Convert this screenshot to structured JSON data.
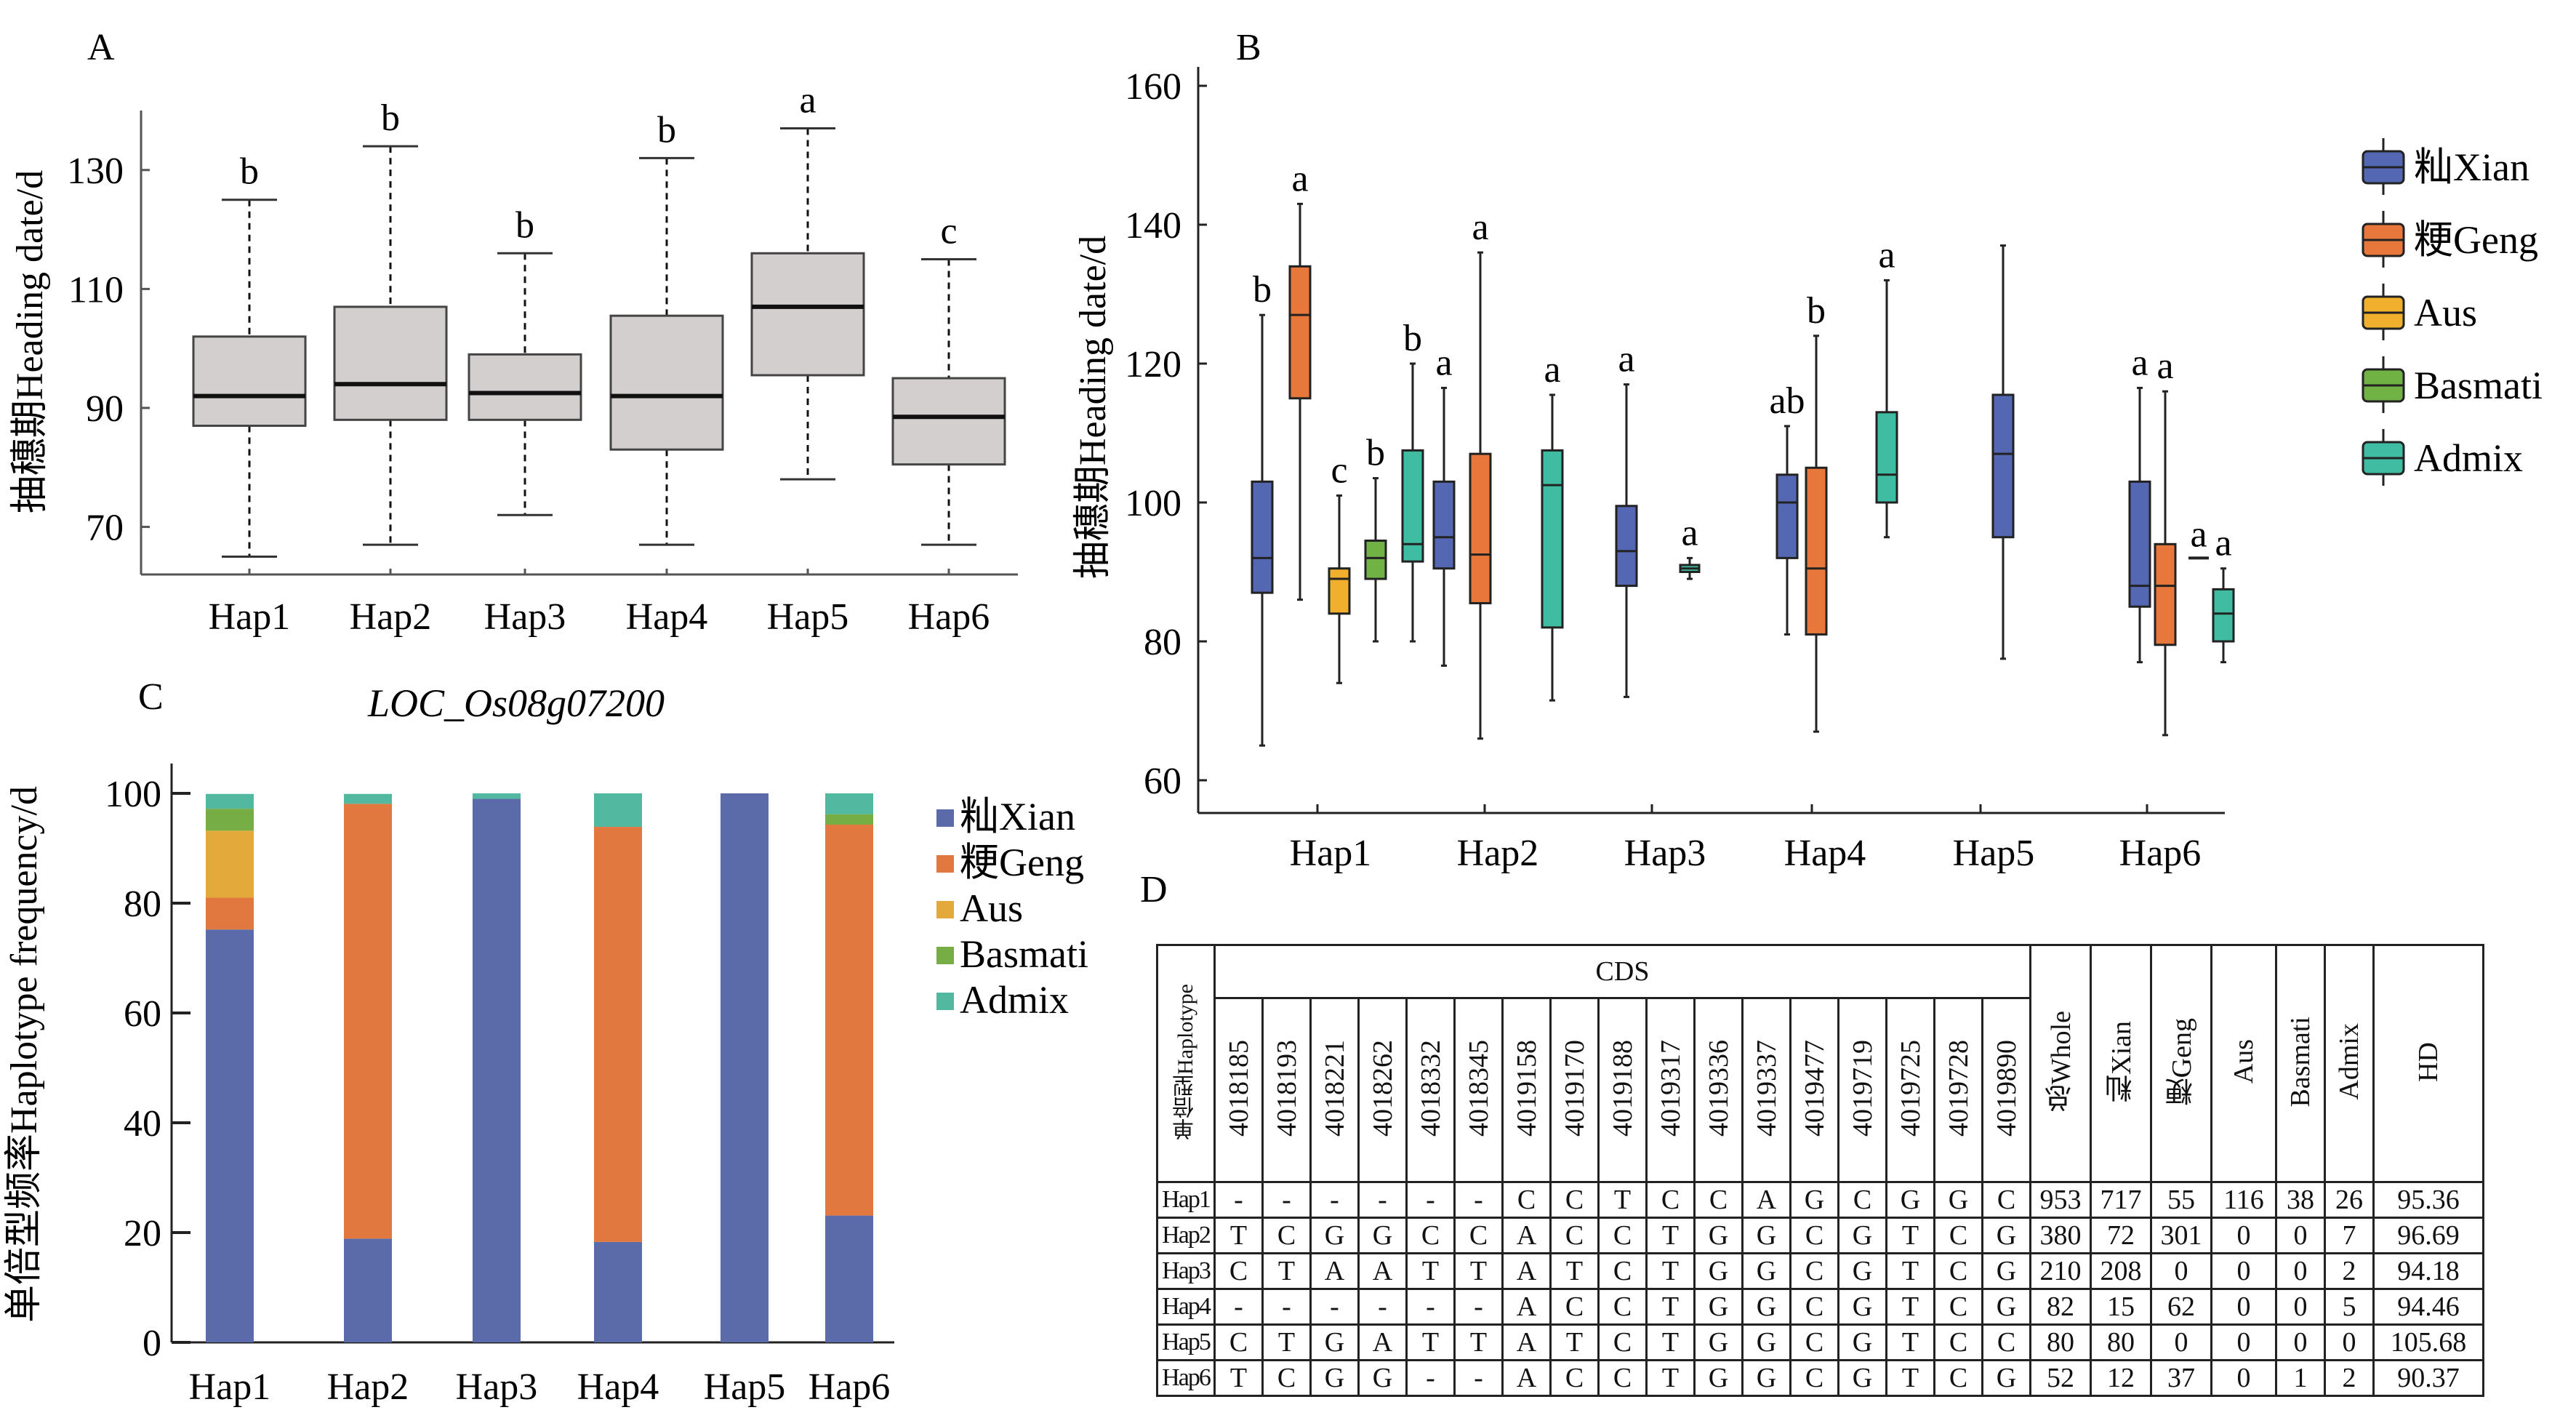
{
  "panels": {
    "a_label": "A",
    "b_label": "B",
    "c_label": "C",
    "d_label": "D"
  },
  "chart_data": [
    {
      "id": "A",
      "type": "box",
      "title": "",
      "ylabel": "抽穗期Heading date/d",
      "xlabel": "",
      "ylim": [
        62,
        140
      ],
      "yticks": [
        70,
        90,
        110,
        130
      ],
      "categories": [
        "Hap1",
        "Hap2",
        "Hap3",
        "Hap4",
        "Hap5",
        "Hap6"
      ],
      "whisker_style": "dashed",
      "box_color": "#d3cfcf",
      "boxes": [
        {
          "min": 65,
          "q1": 87,
          "median": 92,
          "q3": 102,
          "max": 125,
          "sig": "b"
        },
        {
          "min": 67,
          "q1": 88,
          "median": 94,
          "q3": 107,
          "max": 134,
          "sig": "b"
        },
        {
          "min": 72,
          "q1": 88,
          "median": 92.5,
          "q3": 99,
          "max": 116,
          "sig": "b"
        },
        {
          "min": 67,
          "q1": 83,
          "median": 92,
          "q3": 105.5,
          "max": 132,
          "sig": "b"
        },
        {
          "min": 78,
          "q1": 95.5,
          "median": 107,
          "q3": 116,
          "max": 137,
          "sig": "a"
        },
        {
          "min": 67,
          "q1": 80.5,
          "median": 88.5,
          "q3": 95,
          "max": 115,
          "sig": "c"
        }
      ]
    },
    {
      "id": "B",
      "type": "box",
      "title": "",
      "ylabel": "抽穗期Heading date/d",
      "xlabel": "",
      "ylim": [
        55,
        163
      ],
      "yticks": [
        60,
        80,
        100,
        120,
        140,
        160
      ],
      "categories": [
        "Hap1",
        "Hap2",
        "Hap3",
        "Hap4",
        "Hap5",
        "Hap6"
      ],
      "legend_position": "right",
      "series_names": [
        "籼Xian",
        "粳Geng",
        "Aus",
        "Basmati",
        "Admix"
      ],
      "series_colors": [
        "#5467b3",
        "#e8773b",
        "#f0b02e",
        "#71b244",
        "#3fbca2"
      ],
      "groups": [
        {
          "category": "Hap1",
          "boxes": [
            {
              "series": 0,
              "min": 65,
              "q1": 87,
              "median": 92,
              "q3": 103,
              "max": 127,
              "sig": "b"
            },
            {
              "series": 1,
              "min": 86,
              "q1": 115,
              "median": 127,
              "q3": 134,
              "max": 143,
              "sig": "a"
            },
            {
              "series": 2,
              "min": 74,
              "q1": 84,
              "median": 89,
              "q3": 90.5,
              "max": 101,
              "sig": "c"
            },
            {
              "series": 3,
              "min": 80,
              "q1": 89,
              "median": 92,
              "q3": 94.5,
              "max": 103.5,
              "sig": "b"
            },
            {
              "series": 4,
              "min": 80,
              "q1": 91.5,
              "median": 94,
              "q3": 107.5,
              "max": 120,
              "sig": "b"
            }
          ]
        },
        {
          "category": "Hap2",
          "boxes": [
            {
              "series": 0,
              "min": 76.5,
              "q1": 90.5,
              "median": 95,
              "q3": 103,
              "max": 116.5,
              "sig": "a"
            },
            {
              "series": 1,
              "min": 66,
              "q1": 85.5,
              "median": 92.5,
              "q3": 107,
              "max": 136,
              "sig": "a"
            },
            {
              "series": 4,
              "min": 71.5,
              "q1": 82,
              "median": 102.5,
              "q3": 107.5,
              "max": 115.5,
              "sig": "a"
            }
          ]
        },
        {
          "category": "Hap3",
          "boxes": [
            {
              "series": 0,
              "min": 72,
              "q1": 88,
              "median": 93,
              "q3": 99.5,
              "max": 117,
              "sig": "a"
            },
            {
              "series": 4,
              "min": 89,
              "q1": 90,
              "median": 90.5,
              "q3": 91,
              "max": 92,
              "sig": "a"
            }
          ]
        },
        {
          "category": "Hap4",
          "boxes": [
            {
              "series": 0,
              "min": 81,
              "q1": 92,
              "median": 100,
              "q3": 104,
              "max": 111,
              "sig": "ab"
            },
            {
              "series": 1,
              "min": 67,
              "q1": 81,
              "median": 90.5,
              "q3": 105,
              "max": 124,
              "sig": "b"
            },
            {
              "series": 4,
              "min": 95,
              "q1": 100,
              "median": 104,
              "q3": 113,
              "max": 132,
              "sig": "a"
            }
          ]
        },
        {
          "category": "Hap5",
          "boxes": [
            {
              "series": 0,
              "min": 77.5,
              "q1": 95,
              "median": 107,
              "q3": 115.5,
              "max": 137,
              "sig": ""
            }
          ]
        },
        {
          "category": "Hap6",
          "boxes": [
            {
              "series": 0,
              "min": 77,
              "q1": 85,
              "median": 88,
              "q3": 103,
              "max": 116.5,
              "sig": "a"
            },
            {
              "series": 1,
              "min": 66.5,
              "q1": 79.5,
              "median": 88,
              "q3": 94,
              "max": 116,
              "sig": "a"
            },
            {
              "series": 3,
              "min": 92,
              "q1": 92,
              "median": 92,
              "q3": 92,
              "max": 92,
              "sig": "a"
            },
            {
              "series": 4,
              "min": 77,
              "q1": 80,
              "median": 84,
              "q3": 87.5,
              "max": 90.5,
              "sig": "a"
            }
          ]
        }
      ]
    },
    {
      "id": "C",
      "type": "bar",
      "stacked": true,
      "title": "LOC_Os08g07200",
      "ylabel": "单倍型频率Haplotype frequency/d",
      "xlabel": "",
      "ylim": [
        0,
        103
      ],
      "yticks": [
        0,
        20,
        40,
        60,
        80,
        100
      ],
      "categories": [
        "Hap1",
        "Hap2",
        "Hap3",
        "Hap4",
        "Hap5",
        "Hap6"
      ],
      "legend_position": "right",
      "series": [
        {
          "name": "籼Xian",
          "color": "#5b6aa8",
          "values": [
            75.2,
            18.9,
            99.0,
            18.3,
            100,
            23.1
          ]
        },
        {
          "name": "粳Geng",
          "color": "#e07840",
          "values": [
            5.8,
            79.2,
            0,
            75.6,
            0,
            71.2
          ]
        },
        {
          "name": "Aus",
          "color": "#e3a93a",
          "values": [
            12.2,
            0,
            0,
            0,
            0,
            0
          ]
        },
        {
          "name": "Basmati",
          "color": "#76ad45",
          "values": [
            4.0,
            0,
            0,
            0,
            0,
            1.9
          ]
        },
        {
          "name": "Admix",
          "color": "#52b8a0",
          "values": [
            2.7,
            1.8,
            1.0,
            6.1,
            0,
            3.8
          ]
        }
      ]
    }
  ],
  "table": {
    "corner_label": "单倍型Haplotype",
    "cds_label": "CDS",
    "positions": [
      "4018185",
      "4018193",
      "4018221",
      "4018262",
      "4018332",
      "4018345",
      "4019158",
      "4019170",
      "4019188",
      "4019317",
      "4019336",
      "4019337",
      "4019477",
      "4019719",
      "4019725",
      "4019728",
      "4019890"
    ],
    "count_headers": [
      "总Whole",
      "籼Xian",
      "粳Geng",
      "Aus",
      "Basmati",
      "Admix",
      "HD"
    ],
    "rows": [
      {
        "hap": "Hap1",
        "alleles": [
          "-",
          "-",
          "-",
          "-",
          "-",
          "-",
          "C",
          "C",
          "T",
          "C",
          "C",
          "A",
          "G",
          "C",
          "G",
          "G",
          "C"
        ],
        "counts": [
          "953",
          "717",
          "55",
          "116",
          "38",
          "26",
          "95.36"
        ]
      },
      {
        "hap": "Hap2",
        "alleles": [
          "T",
          "C",
          "G",
          "G",
          "C",
          "C",
          "A",
          "C",
          "C",
          "T",
          "G",
          "G",
          "C",
          "G",
          "T",
          "C",
          "G"
        ],
        "counts": [
          "380",
          "72",
          "301",
          "0",
          "0",
          "7",
          "96.69"
        ]
      },
      {
        "hap": "Hap3",
        "alleles": [
          "C",
          "T",
          "A",
          "A",
          "T",
          "T",
          "A",
          "T",
          "C",
          "T",
          "G",
          "G",
          "C",
          "G",
          "T",
          "C",
          "G"
        ],
        "counts": [
          "210",
          "208",
          "0",
          "0",
          "0",
          "2",
          "94.18"
        ]
      },
      {
        "hap": "Hap4",
        "alleles": [
          "-",
          "-",
          "-",
          "-",
          "-",
          "-",
          "A",
          "C",
          "C",
          "T",
          "G",
          "G",
          "C",
          "G",
          "T",
          "C",
          "G"
        ],
        "counts": [
          "82",
          "15",
          "62",
          "0",
          "0",
          "5",
          "94.46"
        ]
      },
      {
        "hap": "Hap5",
        "alleles": [
          "C",
          "T",
          "G",
          "A",
          "T",
          "T",
          "A",
          "T",
          "C",
          "T",
          "G",
          "G",
          "C",
          "G",
          "T",
          "C",
          "C"
        ],
        "counts": [
          "80",
          "80",
          "0",
          "0",
          "0",
          "0",
          "105.68"
        ]
      },
      {
        "hap": "Hap6",
        "alleles": [
          "T",
          "C",
          "G",
          "G",
          "-",
          "-",
          "A",
          "C",
          "C",
          "T",
          "G",
          "G",
          "C",
          "G",
          "T",
          "C",
          "G"
        ],
        "counts": [
          "52",
          "12",
          "37",
          "0",
          "1",
          "2",
          "90.37"
        ]
      }
    ]
  }
}
